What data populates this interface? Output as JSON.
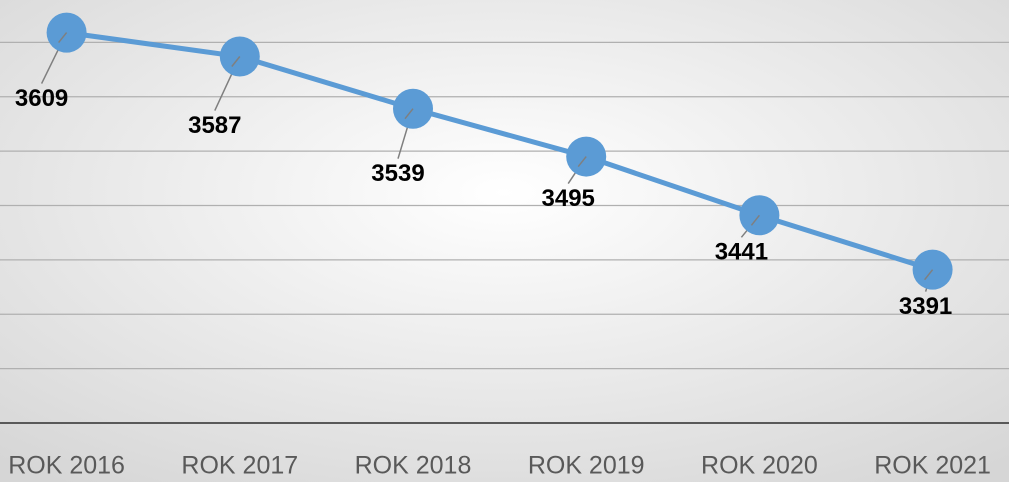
{
  "chart_data": {
    "type": "line",
    "categories": [
      "ROK 2016",
      "ROK 2017",
      "ROK 2018",
      "ROK 2019",
      "ROK 2020",
      "ROK 2021"
    ],
    "series": [
      {
        "color": "#5b9bd5",
        "values": [
          3609,
          3587,
          3539,
          3495,
          3441,
          3391
        ]
      }
    ],
    "ylim": [
      3250,
      3650
    ],
    "yticks": [
      3250,
      3300,
      3350,
      3400,
      3450,
      3500,
      3550,
      3600
    ],
    "grid": true
  }
}
